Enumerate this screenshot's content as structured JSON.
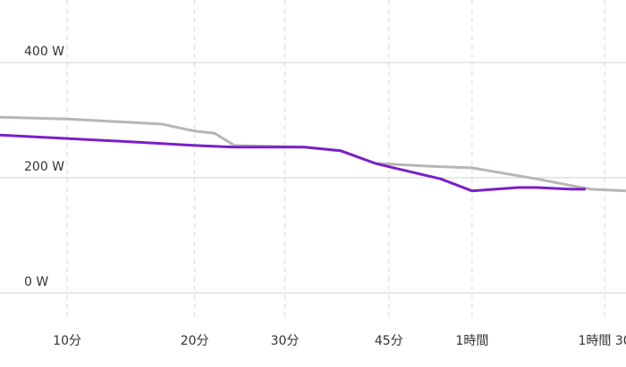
{
  "chart_data": {
    "type": "line",
    "xlim": [
      6.4,
      95.6
    ],
    "xticks": [
      {
        "value": 10,
        "label": "10分"
      },
      {
        "value": 20,
        "label": "20分"
      },
      {
        "value": 30,
        "label": "30分"
      },
      {
        "value": 45,
        "label": "45分"
      },
      {
        "value": 60,
        "label": "1時間"
      },
      {
        "value": 90,
        "label": "1時間 30"
      }
    ],
    "ylim": [
      0,
      400
    ],
    "yticks": [
      {
        "value": 0,
        "label": "0 W"
      },
      {
        "value": 200,
        "label": "200 W"
      },
      {
        "value": 400,
        "label": "400 W"
      }
    ],
    "grid": true,
    "series": [
      {
        "color": "#b9b5b5",
        "x": [
          6.4,
          10,
          17.0,
          20,
          22.0,
          24.1,
          32.5,
          37.5,
          42.8,
          51.9,
          60,
          73.6,
          81.9,
          86.5,
          95.6
        ],
        "values": [
          305,
          302,
          293,
          281,
          277,
          256,
          253,
          247,
          225,
          220,
          217,
          198,
          186,
          180,
          177
        ]
      },
      {
        "color": "#7a1fc8",
        "x": [
          6.4,
          10,
          14.7,
          20,
          24.1,
          32.5,
          37.5,
          42.8,
          45,
          54,
          60,
          69.6,
          73.6,
          81.9,
          85.2
        ],
        "values": [
          274,
          268,
          262,
          256,
          253,
          253,
          247,
          225,
          219,
          198,
          177,
          183,
          183,
          180,
          180
        ]
      }
    ]
  }
}
